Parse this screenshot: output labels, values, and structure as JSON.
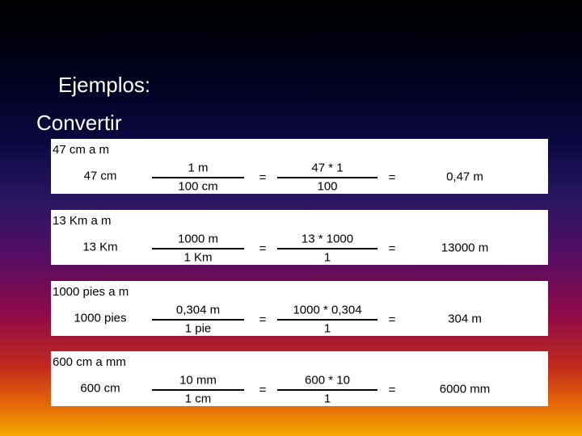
{
  "title": "Ejemplos:",
  "subtitle": "Convertir",
  "equals_sign": "=",
  "examples": [
    {
      "heading": "47 cm a m",
      "quantity": "47 cm",
      "factor": {
        "numerator": "1 m",
        "denominator": "100 cm"
      },
      "expression": {
        "numerator": "47 * 1",
        "denominator": "100"
      },
      "result": "0,47 m"
    },
    {
      "heading": "13 Km a m",
      "quantity": "13 Km",
      "factor": {
        "numerator": "1000 m",
        "denominator": "1 Km"
      },
      "expression": {
        "numerator": "13 * 1000",
        "denominator": "1"
      },
      "result": "13000 m"
    },
    {
      "heading": "1000 pies a m",
      "quantity": "1000 pies",
      "factor": {
        "numerator": "0,304 m",
        "denominator": "1 pie"
      },
      "expression": {
        "numerator": "1000 * 0,304",
        "denominator": "1"
      },
      "result": "304 m"
    },
    {
      "heading": "600 cm a mm",
      "quantity": "600 cm",
      "factor": {
        "numerator": "10 mm",
        "denominator": "1 cm"
      },
      "expression": {
        "numerator": "600 * 10",
        "denominator": "1"
      },
      "result": "6000 mm"
    }
  ]
}
